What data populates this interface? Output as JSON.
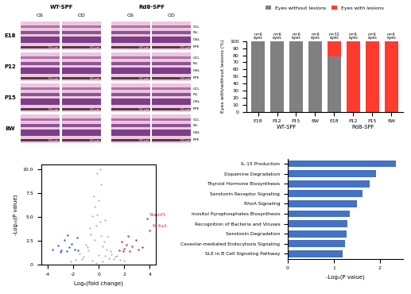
{
  "chart_data": [
    {
      "type": "image_grid",
      "groups": [
        "WT-SPF",
        "Rd8-SPF"
      ],
      "columns": [
        "OS",
        "OD"
      ],
      "rows": [
        "E18",
        "P12",
        "P15",
        "8W"
      ],
      "layer_labels": [
        "GCL",
        "INL",
        "ONL",
        "RPE"
      ],
      "scale_bar": "50 μm"
    },
    {
      "type": "bar",
      "stacked": true,
      "legend": "upper center",
      "categories": [
        "E18",
        "P12",
        "P15",
        "8W",
        "E18",
        "P12",
        "P15",
        "8W"
      ],
      "groups": [
        {
          "name": "WT-SPF",
          "count": 4
        },
        {
          "name": "Rd8-SPF",
          "count": 4
        }
      ],
      "series": [
        {
          "name": "Eyes without lesions",
          "color": "#808080",
          "values": [
            100,
            100,
            100,
            100,
            78,
            0,
            0,
            0
          ]
        },
        {
          "name": "Eyes with lesions",
          "color": "#ff3b30",
          "values": [
            0,
            0,
            0,
            0,
            22,
            100,
            100,
            100
          ]
        }
      ],
      "annotations": [
        "n=6\neyes",
        "n=6\neyes",
        "n=6\neyes",
        "n=6\neyes",
        "n=32\neyes",
        "n=6\neyes",
        "n=6\neyes",
        "n=6\neyes"
      ],
      "y_label": "Eyes with/without lesions (%)",
      "ylim": [
        0,
        100
      ],
      "yticks": [
        0,
        10,
        20,
        30,
        40,
        50,
        60,
        70,
        80,
        90,
        100
      ]
    },
    {
      "type": "scatter",
      "x_label": "Log₂(fold change)",
      "y_label": "-Log₁₀(P value)",
      "xlim": [
        -4.5,
        4.5
      ],
      "xticks": [
        -4,
        -2,
        0,
        2,
        4
      ],
      "ylim": [
        0,
        10.5
      ],
      "yticks": [
        0,
        {
          "value": 2.5,
          "label": "2.5"
        },
        {
          "value": 5,
          "label": "5.0"
        },
        {
          "value": 7.5,
          "label": "7.5"
        },
        {
          "value": 10,
          "label": "10.0"
        }
      ],
      "groups": [
        {
          "color": "#bdbdbd",
          "x": [
            -1.8,
            -1.5,
            -1.2,
            -1.0,
            -0.8,
            -0.6,
            -0.5,
            -0.3,
            -0.2,
            -0.1,
            0.0,
            0.1,
            0.2,
            0.3,
            0.4,
            0.5,
            0.6,
            0.8,
            1.0,
            1.2,
            1.4,
            1.7,
            2.0,
            -2.2,
            -0.4,
            0.2,
            -0.7,
            0.7,
            -0.1,
            0.1,
            -0.9,
            0.9,
            -1.3,
            1.3,
            -0.2,
            0.3,
            -0.5,
            0.5,
            0.0,
            -0.3
          ],
          "y": [
            0.5,
            1.2,
            0.8,
            2.1,
            1.5,
            3.2,
            0.4,
            2.6,
            4.1,
            5.3,
            6.8,
            4.5,
            3.0,
            1.9,
            2.4,
            0.9,
            1.6,
            0.7,
            1.1,
            0.6,
            0.9,
            0.5,
            0.4,
            0.3,
            7.2,
            8.4,
            3.8,
            2.9,
            9.6,
            10.0,
            1.8,
            1.4,
            0.6,
            0.8,
            0.2,
            0.3,
            5.1,
            4.7,
            1.0,
            6.1
          ]
        },
        {
          "color": "#3b5bdb",
          "x": [
            -3.6,
            -3.2,
            -2.9,
            -2.7,
            -2.5,
            -2.3,
            -2.1,
            -1.9,
            -1.7,
            -1.6,
            -3.0,
            -2.4
          ],
          "y": [
            1.6,
            2.0,
            1.5,
            2.6,
            1.4,
            1.8,
            2.2,
            1.6,
            2.8,
            1.5,
            1.3,
            3.1
          ]
        },
        {
          "color": "#e03131",
          "x": [
            1.6,
            1.8,
            2.0,
            2.2,
            2.4,
            2.6,
            2.9,
            3.1,
            3.4,
            2.3,
            1.9,
            3.8,
            4.0
          ],
          "y": [
            1.5,
            2.4,
            1.7,
            2.1,
            1.4,
            1.9,
            2.6,
            1.6,
            1.8,
            3.0,
            1.4,
            4.8,
            3.6
          ]
        }
      ],
      "point_labels": [
        {
          "text": "Slamf1",
          "x": 3.8,
          "y": 4.8,
          "color": "#e03131"
        },
        {
          "text": "Nr4a1",
          "x": 4.0,
          "y": 3.6,
          "color": "#e03131"
        }
      ]
    },
    {
      "type": "bar",
      "orientation": "horizontal",
      "color": "#4472c4",
      "categories": [
        "IL-15 Production",
        "Dopamine Degradation",
        "Thyroid Hormone Biosynthesis",
        "Serotonin Receptor Signaling",
        "RhoA Signaling",
        "Inositol Pyrophosphates Biosynthesis",
        "Recognition of Bacteria and Viruses",
        "Serotonin Degradation",
        "Caveolar-mediated Endocytosis Signaling",
        "SLE in B Cell Signaling Pathway"
      ],
      "values": [
        2.35,
        1.92,
        1.78,
        1.62,
        1.5,
        1.35,
        1.3,
        1.28,
        1.25,
        1.2
      ],
      "x_label": "-Log₂(P value)",
      "xlim": [
        0,
        2.5
      ],
      "xticks": [
        0,
        1,
        2
      ]
    }
  ]
}
